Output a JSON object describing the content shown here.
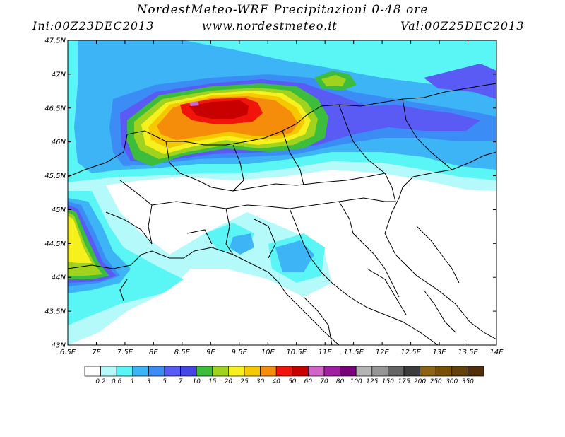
{
  "header": {
    "title": "NordestMeteo-WRF Precipitazioni 0-48 ore",
    "init": "Ini:00Z23DEC2013",
    "website": "www.nordestmeteo.it",
    "valid": "Val:00Z25DEC2013"
  },
  "map": {
    "lat_labels": [
      "47.5N",
      "47N",
      "46.5N",
      "46N",
      "45.5N",
      "45N",
      "44.5N",
      "44N",
      "43.5N",
      "43N"
    ],
    "lon_labels": [
      "6.5E",
      "7E",
      "7.5E",
      "8E",
      "8.5E",
      "9E",
      "9.5E",
      "10E",
      "10.5E",
      "11E",
      "11.5E",
      "12E",
      "12.5E",
      "13E",
      "13.5E",
      "14E"
    ],
    "lon_range": [
      6.5,
      14
    ],
    "lat_range": [
      43,
      47.5
    ]
  },
  "legend": {
    "colors": [
      "#ffffff",
      "#b4fafa",
      "#5af5f5",
      "#3cb4f5",
      "#3c8cf5",
      "#5a5af5",
      "#4646e6",
      "#3cbe3c",
      "#a0d21e",
      "#f5f01e",
      "#f5c800",
      "#f58c0a",
      "#f0140a",
      "#c80000",
      "#d264c8",
      "#a01ea0",
      "#780078",
      "#b4b4b4",
      "#969696",
      "#646464",
      "#3c3c3c",
      "#8c6414",
      "#785008",
      "#64410a",
      "#50300a"
    ],
    "labels": [
      "0.2",
      "0.6",
      "1",
      "3",
      "5",
      "7",
      "10",
      "15",
      "20",
      "25",
      "30",
      "40",
      "50",
      "60",
      "70",
      "80",
      "100",
      "125",
      "150",
      "175",
      "200",
      "250",
      "300",
      "350"
    ]
  }
}
